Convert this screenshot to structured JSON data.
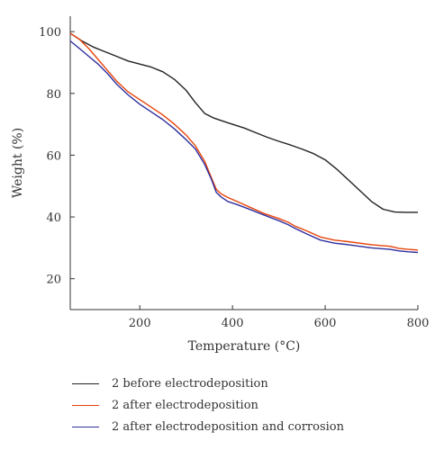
{
  "chart_data": {
    "type": "line",
    "xlabel": "Temperature (°C)",
    "ylabel": "Weight (%)",
    "xlim": [
      50,
      800
    ],
    "ylim": [
      10,
      105
    ],
    "xticks": [
      200,
      400,
      600,
      800
    ],
    "yticks": [
      20,
      40,
      60,
      80,
      100
    ],
    "grid": false,
    "legend_position": "bottom",
    "series": [
      {
        "name": "2 before electrodeposition",
        "color": "#222222",
        "x": [
          50,
          75,
          100,
          125,
          150,
          175,
          200,
          225,
          250,
          275,
          300,
          320,
          340,
          360,
          380,
          400,
          425,
          450,
          475,
          500,
          525,
          550,
          575,
          600,
          625,
          650,
          675,
          700,
          725,
          750,
          775,
          800
        ],
        "y": [
          99.5,
          97,
          95,
          93.5,
          92,
          90.5,
          89.5,
          88.5,
          87,
          84.5,
          81,
          77,
          73.5,
          72,
          71,
          70,
          68.8,
          67.3,
          65.8,
          64.5,
          63.3,
          62,
          60.5,
          58.5,
          55.5,
          52,
          48.5,
          45,
          42.5,
          41.6,
          41.5,
          41.5
        ]
      },
      {
        "name": "2 after electrodeposition",
        "color": "#e8430a",
        "x": [
          50,
          70,
          90,
          110,
          130,
          150,
          175,
          200,
          225,
          250,
          275,
          300,
          320,
          340,
          355,
          365,
          375,
          390,
          410,
          440,
          470,
          500,
          520,
          535,
          560,
          590,
          620,
          650,
          700,
          740,
          760,
          780,
          800
        ],
        "y": [
          99.5,
          97.5,
          94.5,
          91,
          87.5,
          84,
          80.5,
          78,
          75.5,
          73,
          70,
          66.5,
          63,
          58,
          52.5,
          49,
          47.5,
          46.3,
          45,
          43,
          41,
          39.5,
          38.3,
          37,
          35.5,
          33.5,
          32.5,
          32,
          31,
          30.5,
          29.8,
          29.5,
          29.3
        ]
      },
      {
        "name": "2 after electrodeposition and corrosion",
        "color": "#2e2f9e",
        "x": [
          50,
          70,
          90,
          110,
          130,
          150,
          175,
          200,
          225,
          250,
          275,
          300,
          320,
          340,
          355,
          365,
          375,
          390,
          410,
          440,
          470,
          500,
          520,
          535,
          560,
          590,
          620,
          650,
          700,
          740,
          760,
          780,
          800
        ],
        "y": [
          97,
          94.5,
          92,
          89.5,
          86.5,
          83,
          79.5,
          76.5,
          74,
          71.5,
          68.5,
          65,
          62,
          57,
          52,
          48,
          46.5,
          45,
          44,
          42.3,
          40.5,
          38.8,
          37.5,
          36.3,
          34.5,
          32.5,
          31.5,
          31,
          30,
          29.5,
          29,
          28.7,
          28.5
        ]
      }
    ]
  }
}
